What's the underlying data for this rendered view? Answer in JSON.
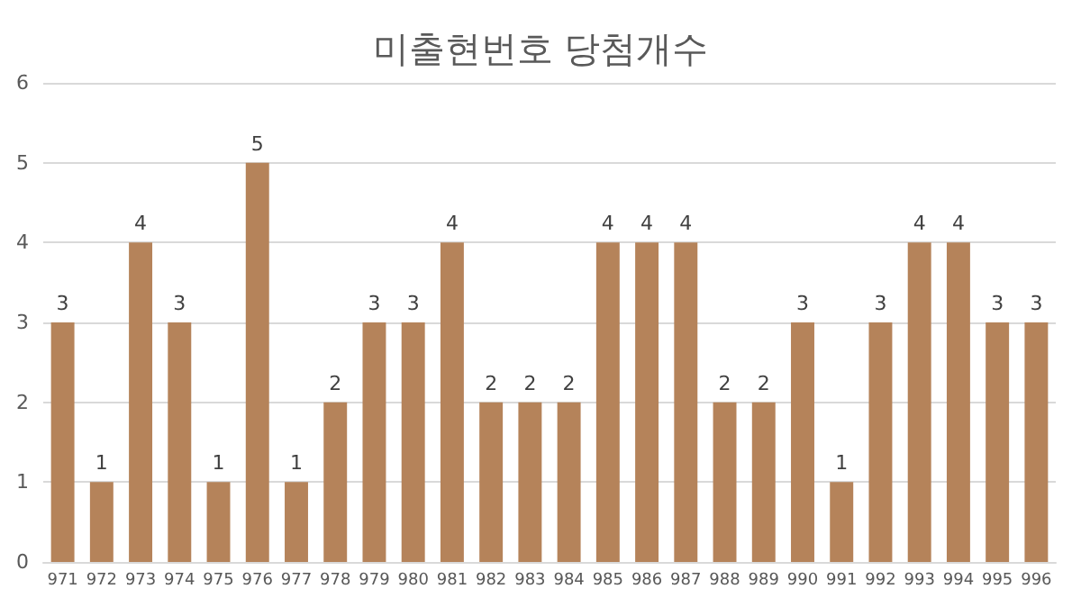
{
  "chart_data": {
    "type": "bar",
    "title": "미출현번호 당첨개수",
    "categories": [
      "971",
      "972",
      "973",
      "974",
      "975",
      "976",
      "977",
      "978",
      "979",
      "980",
      "981",
      "982",
      "983",
      "984",
      "985",
      "986",
      "987",
      "988",
      "989",
      "990",
      "991",
      "992",
      "993",
      "994",
      "995",
      "996"
    ],
    "values": [
      3,
      1,
      4,
      3,
      1,
      5,
      1,
      2,
      3,
      3,
      4,
      2,
      2,
      2,
      4,
      4,
      4,
      2,
      2,
      3,
      1,
      3,
      4,
      4,
      3,
      3
    ],
    "color": "#b5835a",
    "ylim": [
      0,
      6
    ],
    "yticks": [
      0,
      1,
      2,
      3,
      4,
      5,
      6
    ],
    "grid": "y",
    "data_labels": true
  }
}
